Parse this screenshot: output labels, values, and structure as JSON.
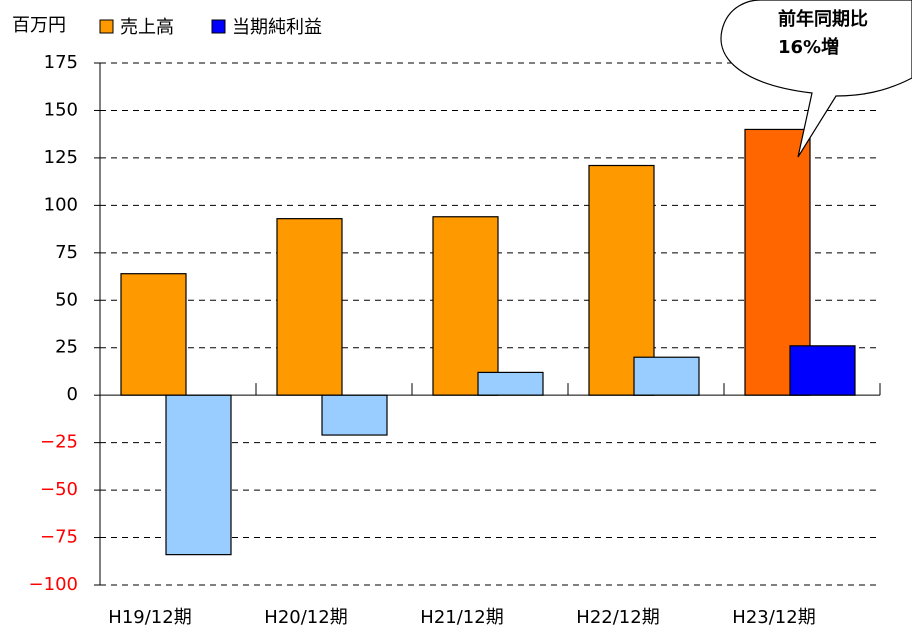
{
  "chart_data": {
    "type": "bar",
    "y_unit": "百万円",
    "categories": [
      "H19/12期",
      "H20/12期",
      "H21/12期",
      "H22/12期",
      "H23/12期"
    ],
    "series": [
      {
        "name": "売上高",
        "color": "#ff9900",
        "point_colors": [
          "#ff9900",
          "#ff9900",
          "#ff9900",
          "#ff9900",
          "#ff6600"
        ],
        "values": [
          64,
          93,
          94,
          121,
          140
        ]
      },
      {
        "name": "当期純利益",
        "color": "#0000ff",
        "point_colors": [
          "#99ccff",
          "#99ccff",
          "#99ccff",
          "#99ccff",
          "#0000ff"
        ],
        "values": [
          -84,
          -21,
          12,
          20,
          26
        ]
      }
    ],
    "ylim": [
      -100,
      175
    ],
    "yticks": [
      {
        "value": -100,
        "label": "−100"
      },
      {
        "value": -75,
        "label": "−75"
      },
      {
        "value": -50,
        "label": "−50"
      },
      {
        "value": -25,
        "label": "−25"
      },
      0,
      25,
      50,
      75,
      100,
      125,
      150,
      175
    ],
    "negative_tick_color": "#ff0000",
    "grid": true,
    "annotation": {
      "lines": [
        "前年同期比",
        "16%増"
      ]
    }
  }
}
